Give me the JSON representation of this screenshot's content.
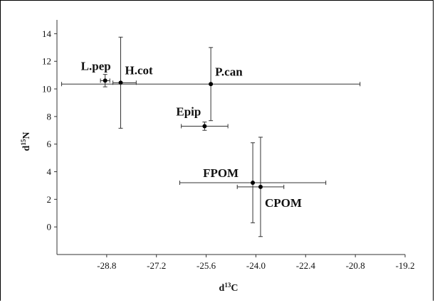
{
  "chart_data": {
    "type": "scatter",
    "title": "",
    "xlabel": {
      "base": "d",
      "sup": "13",
      "tail": "C"
    },
    "ylabel": {
      "base": "d",
      "sup": "15",
      "tail": "N"
    },
    "xlim": [
      -30.4,
      -19.2
    ],
    "ylim": [
      -2,
      15
    ],
    "x_ticks": [
      -28.8,
      -27.2,
      -25.6,
      -24.0,
      -22.4,
      -20.8,
      -19.2
    ],
    "x_tick_labels": [
      "-28.8",
      "-27.2",
      "-25.6",
      "-24.0",
      "-22.4",
      "-20.8",
      "-19.2"
    ],
    "y_ticks": [
      0,
      2,
      4,
      6,
      8,
      10,
      12,
      14
    ],
    "y_tick_labels": [
      "0",
      "2",
      "4",
      "6",
      "8",
      "10",
      "12",
      "14"
    ],
    "grid": false,
    "legend": "none",
    "error_bars": true,
    "points": [
      {
        "label": "L.pep",
        "x": -28.85,
        "y": 10.6,
        "x_err": [
          0.15,
          0.15
        ],
        "y_err": [
          0.45,
          0.45
        ]
      },
      {
        "label": "H.cot",
        "x": -28.35,
        "y": 10.45,
        "x_err": [
          0.25,
          0.5
        ],
        "y_err": [
          3.3,
          3.3
        ]
      },
      {
        "label": "P.can",
        "x": -25.45,
        "y": 10.35,
        "x_err": [
          4.8,
          4.8
        ],
        "y_err": [
          2.65,
          2.65
        ]
      },
      {
        "label": "Epip",
        "x": -25.65,
        "y": 7.3,
        "x_err": [
          0.75,
          0.75
        ],
        "y_err": [
          0.3,
          0.3
        ]
      },
      {
        "label": "FPOM",
        "x": -24.1,
        "y": 3.2,
        "x_err": [
          2.35,
          2.35
        ],
        "y_err": [
          2.9,
          2.9
        ]
      },
      {
        "label": "CPOM",
        "x": -23.85,
        "y": 2.9,
        "x_err": [
          0.75,
          0.75
        ],
        "y_err": [
          3.6,
          3.6
        ]
      }
    ]
  }
}
